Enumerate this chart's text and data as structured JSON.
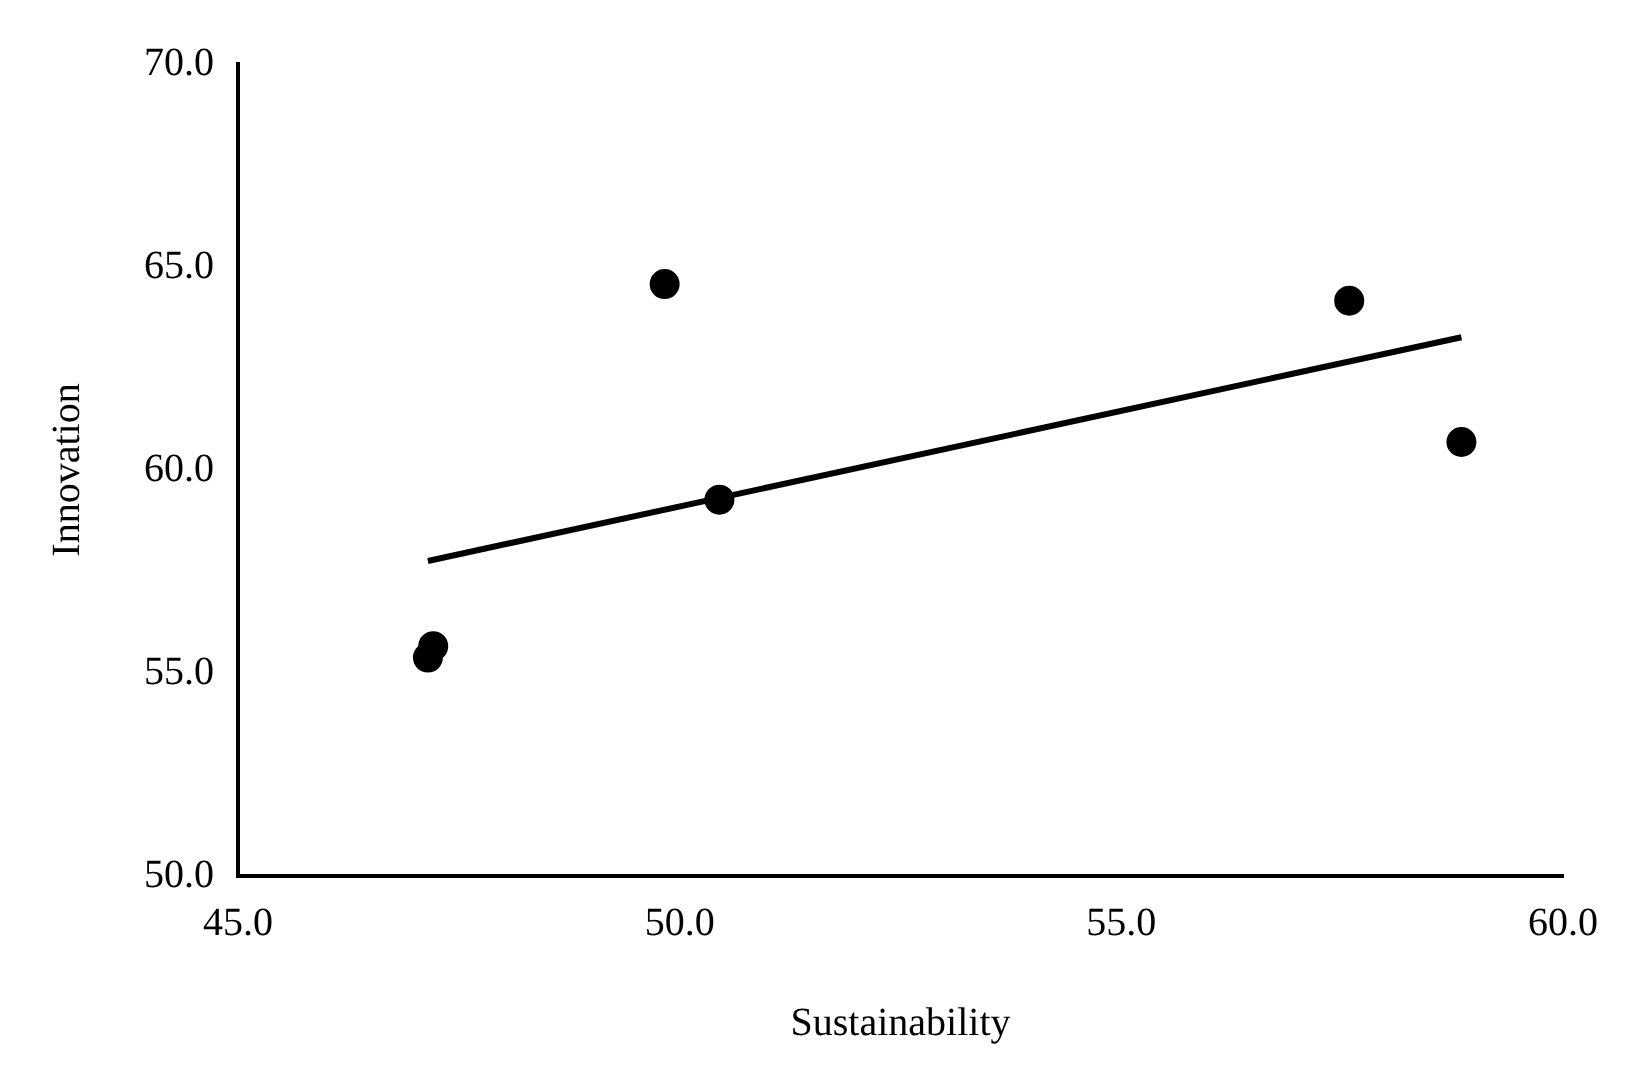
{
  "chart_data": {
    "type": "scatter",
    "xlabel": "Sustainability",
    "ylabel": "Innovation",
    "xlim": [
      45,
      60
    ],
    "xticks": [
      {
        "value": 45,
        "label": "45.0"
      },
      {
        "value": 50,
        "label": "50.0"
      },
      {
        "value": 55,
        "label": "55.0"
      },
      {
        "value": 60,
        "label": "60.0"
      }
    ],
    "ylim": [
      50,
      70
    ],
    "yticks": [
      {
        "value": 50,
        "label": "50.0"
      },
      {
        "value": 55,
        "label": "55.0"
      },
      {
        "value": 60,
        "label": "60.0"
      },
      {
        "value": 65,
        "label": "65.0"
      },
      {
        "value": 70,
        "label": "70.0"
      }
    ],
    "grid": false,
    "legend": false,
    "marker": "circle",
    "series": [
      {
        "color": "#000000",
        "x": [
          47.15,
          47.21,
          49.83,
          50.45,
          57.58,
          58.85
        ],
        "values": [
          55.38,
          55.66,
          64.58,
          59.27,
          64.17,
          60.69
        ]
      },
      {
        "type": "line",
        "color": "#000000",
        "marker": "none",
        "line_style": "solid",
        "x": [
          47.15,
          58.85
        ],
        "values": [
          57.76,
          63.27
        ]
      }
    ]
  }
}
